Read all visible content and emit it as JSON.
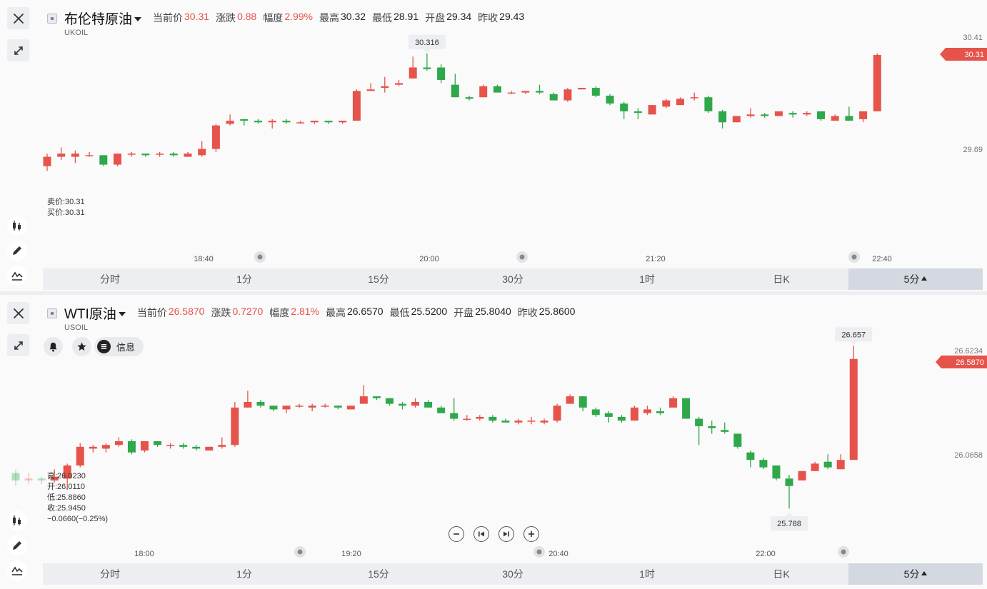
{
  "panels": [
    {
      "title": "布伦特原油",
      "code": "UKOIL",
      "quotes": [
        {
          "label": "当前价",
          "value": "30.31",
          "up": true
        },
        {
          "label": "涨跌",
          "value": "0.88",
          "up": true
        },
        {
          "label": "幅度",
          "value": "2.99%",
          "up": true
        },
        {
          "label": "最高",
          "value": "30.32",
          "up": false
        },
        {
          "label": "最低",
          "value": "28.91",
          "up": false
        },
        {
          "label": "开盘",
          "value": "29.34",
          "up": false
        },
        {
          "label": "昨收",
          "value": "29.43",
          "up": false
        }
      ],
      "info_lines": [
        "卖价:30.31",
        "买价:30.31"
      ],
      "tabs": [
        "分时",
        "1分",
        "15分",
        "30分",
        "1时",
        "日K",
        "5分"
      ],
      "active_tab": 6
    },
    {
      "title": "WTI原油",
      "code": "USOIL",
      "quotes": [
        {
          "label": "当前价",
          "value": "26.5870",
          "up": true
        },
        {
          "label": "涨跌",
          "value": "0.7270",
          "up": true
        },
        {
          "label": "幅度",
          "value": "2.81%",
          "up": true
        },
        {
          "label": "最高",
          "value": "26.6570",
          "up": false
        },
        {
          "label": "最低",
          "value": "25.5200",
          "up": false
        },
        {
          "label": "开盘",
          "value": "25.8040",
          "up": false
        },
        {
          "label": "昨收",
          "value": "25.8600",
          "up": false
        }
      ],
      "buttons": {
        "info_label": "信息"
      },
      "info_lines": [
        "高:26.0230",
        "开:26.0110",
        "低:25.8860",
        "收:25.9450",
        "−0.0660(−0.25%)"
      ],
      "tabs": [
        "分时",
        "1分",
        "15分",
        "30分",
        "1时",
        "日K",
        "5分"
      ],
      "active_tab": 6
    }
  ],
  "colors": {
    "up": "#e5534b",
    "down": "#2ea84a",
    "accent": "#e5534b"
  },
  "icons": [
    "close-icon",
    "expand-icon",
    "candlestick-icon",
    "pencil-icon",
    "indicator-icon",
    "bell-icon",
    "star-icon",
    "list-icon",
    "zoom-out-icon",
    "skip-back-icon",
    "skip-forward-icon",
    "zoom-in-icon"
  ],
  "chart_data": [
    {
      "type": "candlestick",
      "title": "布伦特原油",
      "interval": "5分",
      "x_ticks": [
        "18:40",
        "20:00",
        "21:20",
        "22:40"
      ],
      "y_ticks": [
        "30.41",
        "29.69"
      ],
      "last_price_label": "30.31",
      "high_marker": "30.316",
      "candles": [
        {
          "o": 29.6,
          "c": 29.66,
          "h": 29.68,
          "l": 29.57
        },
        {
          "o": 29.66,
          "c": 29.68,
          "h": 29.72,
          "l": 29.64
        },
        {
          "o": 29.66,
          "c": 29.68,
          "h": 29.7,
          "l": 29.62
        },
        {
          "o": 29.67,
          "c": 29.67,
          "h": 29.69,
          "l": 29.66
        },
        {
          "o": 29.67,
          "c": 29.61,
          "h": 29.67,
          "l": 29.6
        },
        {
          "o": 29.61,
          "c": 29.68,
          "h": 29.68,
          "l": 29.6
        },
        {
          "o": 29.68,
          "c": 29.68,
          "h": 29.69,
          "l": 29.66
        },
        {
          "o": 29.68,
          "c": 29.67,
          "h": 29.68,
          "l": 29.66
        },
        {
          "o": 29.68,
          "c": 29.68,
          "h": 29.69,
          "l": 29.66
        },
        {
          "o": 29.68,
          "c": 29.67,
          "h": 29.69,
          "l": 29.66
        },
        {
          "o": 29.66,
          "c": 29.68,
          "h": 29.69,
          "l": 29.66
        },
        {
          "o": 29.67,
          "c": 29.71,
          "h": 29.76,
          "l": 29.66
        },
        {
          "o": 29.71,
          "c": 29.86,
          "h": 29.87,
          "l": 29.69
        },
        {
          "o": 29.87,
          "c": 29.89,
          "h": 29.93,
          "l": 29.86
        },
        {
          "o": 29.9,
          "c": 29.89,
          "h": 29.9,
          "l": 29.86
        },
        {
          "o": 29.89,
          "c": 29.88,
          "h": 29.9,
          "l": 29.87
        },
        {
          "o": 29.88,
          "c": 29.89,
          "h": 29.9,
          "l": 29.84
        },
        {
          "o": 29.89,
          "c": 29.88,
          "h": 29.9,
          "l": 29.87
        },
        {
          "o": 29.88,
          "c": 29.88,
          "h": 29.89,
          "l": 29.87
        },
        {
          "o": 29.88,
          "c": 29.89,
          "h": 29.89,
          "l": 29.87
        },
        {
          "o": 29.89,
          "c": 29.88,
          "h": 29.89,
          "l": 29.87
        },
        {
          "o": 29.88,
          "c": 29.89,
          "h": 29.89,
          "l": 29.87
        },
        {
          "o": 29.89,
          "c": 30.08,
          "h": 30.09,
          "l": 29.89
        },
        {
          "o": 30.08,
          "c": 30.09,
          "h": 30.13,
          "l": 30.08
        },
        {
          "o": 30.1,
          "c": 30.11,
          "h": 30.17,
          "l": 30.07
        },
        {
          "o": 30.12,
          "c": 30.13,
          "h": 30.15,
          "l": 30.11
        },
        {
          "o": 30.16,
          "c": 30.23,
          "h": 30.3,
          "l": 30.16
        },
        {
          "o": 30.23,
          "c": 30.22,
          "h": 30.32,
          "l": 30.21
        },
        {
          "o": 30.23,
          "c": 30.15,
          "h": 30.25,
          "l": 30.13
        },
        {
          "o": 30.12,
          "c": 30.04,
          "h": 30.19,
          "l": 30.04
        },
        {
          "o": 30.04,
          "c": 30.03,
          "h": 30.05,
          "l": 30.02
        },
        {
          "o": 30.04,
          "c": 30.11,
          "h": 30.12,
          "l": 30.04
        },
        {
          "o": 30.11,
          "c": 30.07,
          "h": 30.12,
          "l": 30.07
        },
        {
          "o": 30.07,
          "c": 30.07,
          "h": 30.08,
          "l": 30.06
        },
        {
          "o": 30.07,
          "c": 30.08,
          "h": 30.08,
          "l": 30.06
        },
        {
          "o": 30.08,
          "c": 30.07,
          "h": 30.12,
          "l": 30.06
        },
        {
          "o": 30.06,
          "c": 30.02,
          "h": 30.07,
          "l": 30.02
        },
        {
          "o": 30.02,
          "c": 30.09,
          "h": 30.1,
          "l": 30.01
        },
        {
          "o": 30.09,
          "c": 30.1,
          "h": 30.1,
          "l": 30.09
        },
        {
          "o": 30.1,
          "c": 30.05,
          "h": 30.11,
          "l": 30.04
        },
        {
          "o": 30.05,
          "c": 30.0,
          "h": 30.06,
          "l": 29.99
        },
        {
          "o": 30.0,
          "c": 29.95,
          "h": 30.01,
          "l": 29.9
        },
        {
          "o": 29.95,
          "c": 29.94,
          "h": 29.97,
          "l": 29.9
        },
        {
          "o": 29.93,
          "c": 29.99,
          "h": 29.99,
          "l": 29.93
        },
        {
          "o": 29.98,
          "c": 30.02,
          "h": 30.03,
          "l": 29.97
        },
        {
          "o": 29.99,
          "c": 30.03,
          "h": 30.04,
          "l": 29.99
        },
        {
          "o": 30.04,
          "c": 30.04,
          "h": 30.07,
          "l": 30.02
        },
        {
          "o": 30.04,
          "c": 29.95,
          "h": 30.05,
          "l": 29.94
        },
        {
          "o": 29.95,
          "c": 29.88,
          "h": 29.96,
          "l": 29.84
        },
        {
          "o": 29.88,
          "c": 29.92,
          "h": 29.92,
          "l": 29.88
        },
        {
          "o": 29.92,
          "c": 29.93,
          "h": 29.97,
          "l": 29.91
        },
        {
          "o": 29.93,
          "c": 29.92,
          "h": 29.94,
          "l": 29.91
        },
        {
          "o": 29.92,
          "c": 29.95,
          "h": 29.95,
          "l": 29.92
        },
        {
          "o": 29.94,
          "c": 29.93,
          "h": 29.95,
          "l": 29.91
        },
        {
          "o": 29.93,
          "c": 29.94,
          "h": 29.95,
          "l": 29.92
        },
        {
          "o": 29.95,
          "c": 29.9,
          "h": 29.95,
          "l": 29.89
        },
        {
          "o": 29.89,
          "c": 29.92,
          "h": 29.93,
          "l": 29.89
        },
        {
          "o": 29.92,
          "c": 29.89,
          "h": 29.98,
          "l": 29.89
        },
        {
          "o": 29.9,
          "c": 29.95,
          "h": 29.95,
          "l": 29.88
        },
        {
          "o": 29.95,
          "c": 30.31,
          "h": 30.32,
          "l": 29.95
        }
      ]
    },
    {
      "type": "candlestick",
      "title": "WTI原油",
      "interval": "5分",
      "x_ticks": [
        "18:00",
        "19:20",
        "20:40",
        "22:00"
      ],
      "y_ticks": [
        "26.6234",
        "26.0658"
      ],
      "last_price_label": "26.5870",
      "high_marker": "26.657",
      "low_marker": "25.788",
      "candles": [
        {
          "o": 25.98,
          "c": 25.94,
          "h": 26.0,
          "l": 25.91
        },
        {
          "o": 25.94,
          "c": 25.95,
          "h": 25.98,
          "l": 25.92
        },
        {
          "o": 25.95,
          "c": 25.94,
          "h": 25.96,
          "l": 25.92
        },
        {
          "o": 25.94,
          "c": 25.96,
          "h": 26.0,
          "l": 25.93
        },
        {
          "o": 25.95,
          "c": 26.02,
          "h": 26.03,
          "l": 25.89
        },
        {
          "o": 26.02,
          "c": 26.12,
          "h": 26.14,
          "l": 26.01
        },
        {
          "o": 26.11,
          "c": 26.12,
          "h": 26.13,
          "l": 26.09
        },
        {
          "o": 26.11,
          "c": 26.13,
          "h": 26.14,
          "l": 26.09
        },
        {
          "o": 26.13,
          "c": 26.15,
          "h": 26.17,
          "l": 26.12
        },
        {
          "o": 26.15,
          "c": 26.09,
          "h": 26.16,
          "l": 26.08
        },
        {
          "o": 26.1,
          "c": 26.15,
          "h": 26.15,
          "l": 26.09
        },
        {
          "o": 26.15,
          "c": 26.13,
          "h": 26.15,
          "l": 26.12
        },
        {
          "o": 26.13,
          "c": 26.13,
          "h": 26.14,
          "l": 26.11
        },
        {
          "o": 26.13,
          "c": 26.12,
          "h": 26.14,
          "l": 26.11
        },
        {
          "o": 26.12,
          "c": 26.11,
          "h": 26.13,
          "l": 26.1
        },
        {
          "o": 26.1,
          "c": 26.12,
          "h": 26.12,
          "l": 26.1
        },
        {
          "o": 26.12,
          "c": 26.13,
          "h": 26.17,
          "l": 26.11
        },
        {
          "o": 26.13,
          "c": 26.33,
          "h": 26.36,
          "l": 26.12
        },
        {
          "o": 26.33,
          "c": 26.36,
          "h": 26.42,
          "l": 26.33
        },
        {
          "o": 26.36,
          "c": 26.34,
          "h": 26.37,
          "l": 26.33
        },
        {
          "o": 26.34,
          "c": 26.32,
          "h": 26.34,
          "l": 26.31
        },
        {
          "o": 26.32,
          "c": 26.34,
          "h": 26.34,
          "l": 26.3
        },
        {
          "o": 26.34,
          "c": 26.34,
          "h": 26.35,
          "l": 26.33
        },
        {
          "o": 26.33,
          "c": 26.34,
          "h": 26.35,
          "l": 26.31
        },
        {
          "o": 26.34,
          "c": 26.34,
          "h": 26.35,
          "l": 26.33
        },
        {
          "o": 26.34,
          "c": 26.33,
          "h": 26.34,
          "l": 26.32
        },
        {
          "o": 26.32,
          "c": 26.34,
          "h": 26.34,
          "l": 26.32
        },
        {
          "o": 26.35,
          "c": 26.39,
          "h": 26.45,
          "l": 26.35
        },
        {
          "o": 26.39,
          "c": 26.38,
          "h": 26.39,
          "l": 26.37
        },
        {
          "o": 26.38,
          "c": 26.35,
          "h": 26.38,
          "l": 26.34
        },
        {
          "o": 26.35,
          "c": 26.34,
          "h": 26.36,
          "l": 26.32
        },
        {
          "o": 26.34,
          "c": 26.36,
          "h": 26.38,
          "l": 26.33
        },
        {
          "o": 26.36,
          "c": 26.33,
          "h": 26.37,
          "l": 26.33
        },
        {
          "o": 26.33,
          "c": 26.3,
          "h": 26.34,
          "l": 26.3
        },
        {
          "o": 26.3,
          "c": 26.27,
          "h": 26.38,
          "l": 26.26
        },
        {
          "o": 26.27,
          "c": 26.27,
          "h": 26.29,
          "l": 26.26
        },
        {
          "o": 26.27,
          "c": 26.28,
          "h": 26.29,
          "l": 26.26
        },
        {
          "o": 26.28,
          "c": 26.26,
          "h": 26.29,
          "l": 26.25
        },
        {
          "o": 26.26,
          "c": 26.25,
          "h": 26.27,
          "l": 26.25
        },
        {
          "o": 26.25,
          "c": 26.26,
          "h": 26.27,
          "l": 26.24
        },
        {
          "o": 26.26,
          "c": 26.26,
          "h": 26.28,
          "l": 26.24
        },
        {
          "o": 26.25,
          "c": 26.26,
          "h": 26.27,
          "l": 26.24
        },
        {
          "o": 26.26,
          "c": 26.34,
          "h": 26.35,
          "l": 26.25
        },
        {
          "o": 26.35,
          "c": 26.39,
          "h": 26.4,
          "l": 26.35
        },
        {
          "o": 26.39,
          "c": 26.33,
          "h": 26.39,
          "l": 26.31
        },
        {
          "o": 26.32,
          "c": 26.29,
          "h": 26.33,
          "l": 26.28
        },
        {
          "o": 26.3,
          "c": 26.28,
          "h": 26.31,
          "l": 26.25
        },
        {
          "o": 26.28,
          "c": 26.26,
          "h": 26.29,
          "l": 26.25
        },
        {
          "o": 26.26,
          "c": 26.33,
          "h": 26.34,
          "l": 26.26
        },
        {
          "o": 26.3,
          "c": 26.32,
          "h": 26.34,
          "l": 26.29
        },
        {
          "o": 26.31,
          "c": 26.3,
          "h": 26.33,
          "l": 26.29
        },
        {
          "o": 26.33,
          "c": 26.38,
          "h": 26.39,
          "l": 26.33
        },
        {
          "o": 26.38,
          "c": 26.27,
          "h": 26.38,
          "l": 26.27
        },
        {
          "o": 26.27,
          "c": 26.23,
          "h": 26.28,
          "l": 26.13
        },
        {
          "o": 26.23,
          "c": 26.22,
          "h": 26.26,
          "l": 26.19
        },
        {
          "o": 26.21,
          "c": 26.2,
          "h": 26.25,
          "l": 26.19
        },
        {
          "o": 26.19,
          "c": 26.12,
          "h": 26.19,
          "l": 26.11
        },
        {
          "o": 26.09,
          "c": 26.05,
          "h": 26.1,
          "l": 26.01
        },
        {
          "o": 26.05,
          "c": 26.01,
          "h": 26.06,
          "l": 26.0
        },
        {
          "o": 26.02,
          "c": 25.95,
          "h": 26.02,
          "l": 25.94
        },
        {
          "o": 25.95,
          "c": 25.91,
          "h": 25.97,
          "l": 25.79
        },
        {
          "o": 25.94,
          "c": 25.99,
          "h": 25.99,
          "l": 25.94
        },
        {
          "o": 25.99,
          "c": 26.03,
          "h": 26.04,
          "l": 25.99
        },
        {
          "o": 26.04,
          "c": 26.01,
          "h": 26.08,
          "l": 26.0
        },
        {
          "o": 26.0,
          "c": 26.05,
          "h": 26.08,
          "l": 26.0
        },
        {
          "o": 26.05,
          "c": 26.59,
          "h": 26.66,
          "l": 26.05
        }
      ]
    }
  ]
}
